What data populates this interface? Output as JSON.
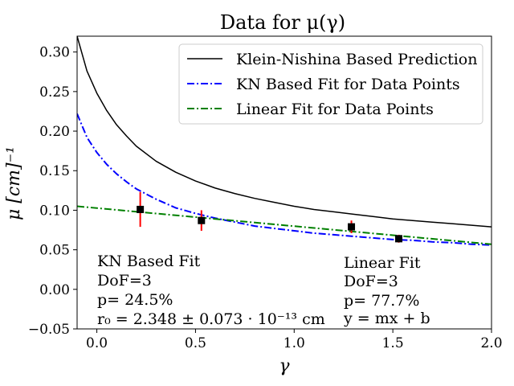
{
  "chart_data": {
    "type": "line",
    "title": "Data for μ(γ)",
    "xlabel": "γ",
    "ylabel": "μ [cm]⁻¹",
    "xlim": [
      -0.1,
      2.0
    ],
    "ylim": [
      -0.05,
      0.32
    ],
    "xticks": [
      0.0,
      0.5,
      1.0,
      1.5,
      2.0
    ],
    "xtick_labels": [
      "0.0",
      "0.5",
      "1.0",
      "1.5",
      "2.0"
    ],
    "yticks": [
      -0.05,
      0.0,
      0.05,
      0.1,
      0.15,
      0.2,
      0.25,
      0.3
    ],
    "ytick_labels": [
      "−0.05",
      "0.00",
      "0.05",
      "0.10",
      "0.15",
      "0.20",
      "0.25",
      "0.30"
    ],
    "grid": false,
    "legend_position": "top-right",
    "series": [
      {
        "name": "Klein-Nishina Based Prediction",
        "style": "solid",
        "color": "#000000",
        "x": [
          -0.1,
          -0.05,
          0.0,
          0.05,
          0.1,
          0.15,
          0.2,
          0.3,
          0.4,
          0.5,
          0.6,
          0.7,
          0.8,
          0.9,
          1.0,
          1.1,
          1.2,
          1.3,
          1.4,
          1.5,
          1.6,
          1.7,
          1.8,
          1.9,
          2.0
        ],
        "y": [
          0.32,
          0.276,
          0.248,
          0.226,
          0.208,
          0.194,
          0.181,
          0.162,
          0.148,
          0.137,
          0.128,
          0.121,
          0.115,
          0.11,
          0.105,
          0.101,
          0.098,
          0.095,
          0.092,
          0.089,
          0.087,
          0.085,
          0.083,
          0.081,
          0.079
        ]
      },
      {
        "name": "KN Based Fit for Data Points",
        "style": "dashdot",
        "color": "#0000ff",
        "x": [
          -0.1,
          -0.05,
          0.0,
          0.05,
          0.1,
          0.15,
          0.2,
          0.3,
          0.4,
          0.5,
          0.6,
          0.7,
          0.8,
          0.9,
          1.0,
          1.1,
          1.2,
          1.3,
          1.4,
          1.5,
          1.6,
          1.7,
          1.8,
          1.9,
          2.0
        ],
        "y": [
          0.222,
          0.192,
          0.173,
          0.158,
          0.146,
          0.136,
          0.127,
          0.114,
          0.103,
          0.096,
          0.09,
          0.085,
          0.08,
          0.077,
          0.074,
          0.071,
          0.069,
          0.067,
          0.065,
          0.063,
          0.062,
          0.06,
          0.059,
          0.057,
          0.056
        ]
      },
      {
        "name": "Linear Fit for Data Points",
        "style": "dashdot",
        "color": "#008000",
        "x": [
          -0.1,
          2.0
        ],
        "y": [
          0.105,
          0.057
        ]
      }
    ],
    "data_points": {
      "marker": "square",
      "color": "#000000",
      "errorbar_color": "#ff0000",
      "x": [
        0.22,
        0.53,
        1.29,
        1.53
      ],
      "y": [
        0.101,
        0.087,
        0.079,
        0.064
      ],
      "yerr": [
        0.022,
        0.013,
        0.008,
        0.005
      ]
    },
    "annotations": {
      "left": [
        "KN Based Fit",
        "DoF=3",
        "p= 24.5%",
        "r₀ = 2.348 ± 0.073 · 10⁻¹³ cm"
      ],
      "right": [
        "Linear Fit",
        "DoF=3",
        "p= 77.7%",
        "y = mx + b"
      ]
    }
  }
}
